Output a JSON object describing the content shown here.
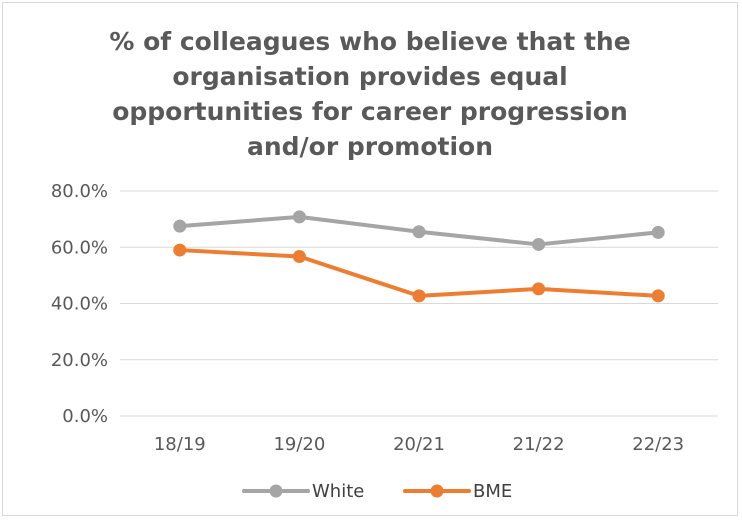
{
  "chart_data": {
    "type": "line",
    "title_lines": [
      "% of colleagues who believe that the",
      "organisation provides equal",
      "opportunities for career progression",
      "and/or promotion"
    ],
    "categories": [
      "18/19",
      "19/20",
      "20/21",
      "21/22",
      "22/23"
    ],
    "y_ticks": [
      "0.0%",
      "20.0%",
      "40.0%",
      "60.0%",
      "80.0%"
    ],
    "ylim": [
      0,
      80
    ],
    "grid": true,
    "legend_position": "bottom",
    "series": [
      {
        "name": "White",
        "color": "#a5a5a5",
        "values": [
          67.5,
          70.8,
          65.5,
          61.0,
          65.3
        ]
      },
      {
        "name": "BME",
        "color": "#ed7d31",
        "values": [
          59.0,
          56.7,
          42.7,
          45.2,
          42.7
        ]
      }
    ]
  }
}
